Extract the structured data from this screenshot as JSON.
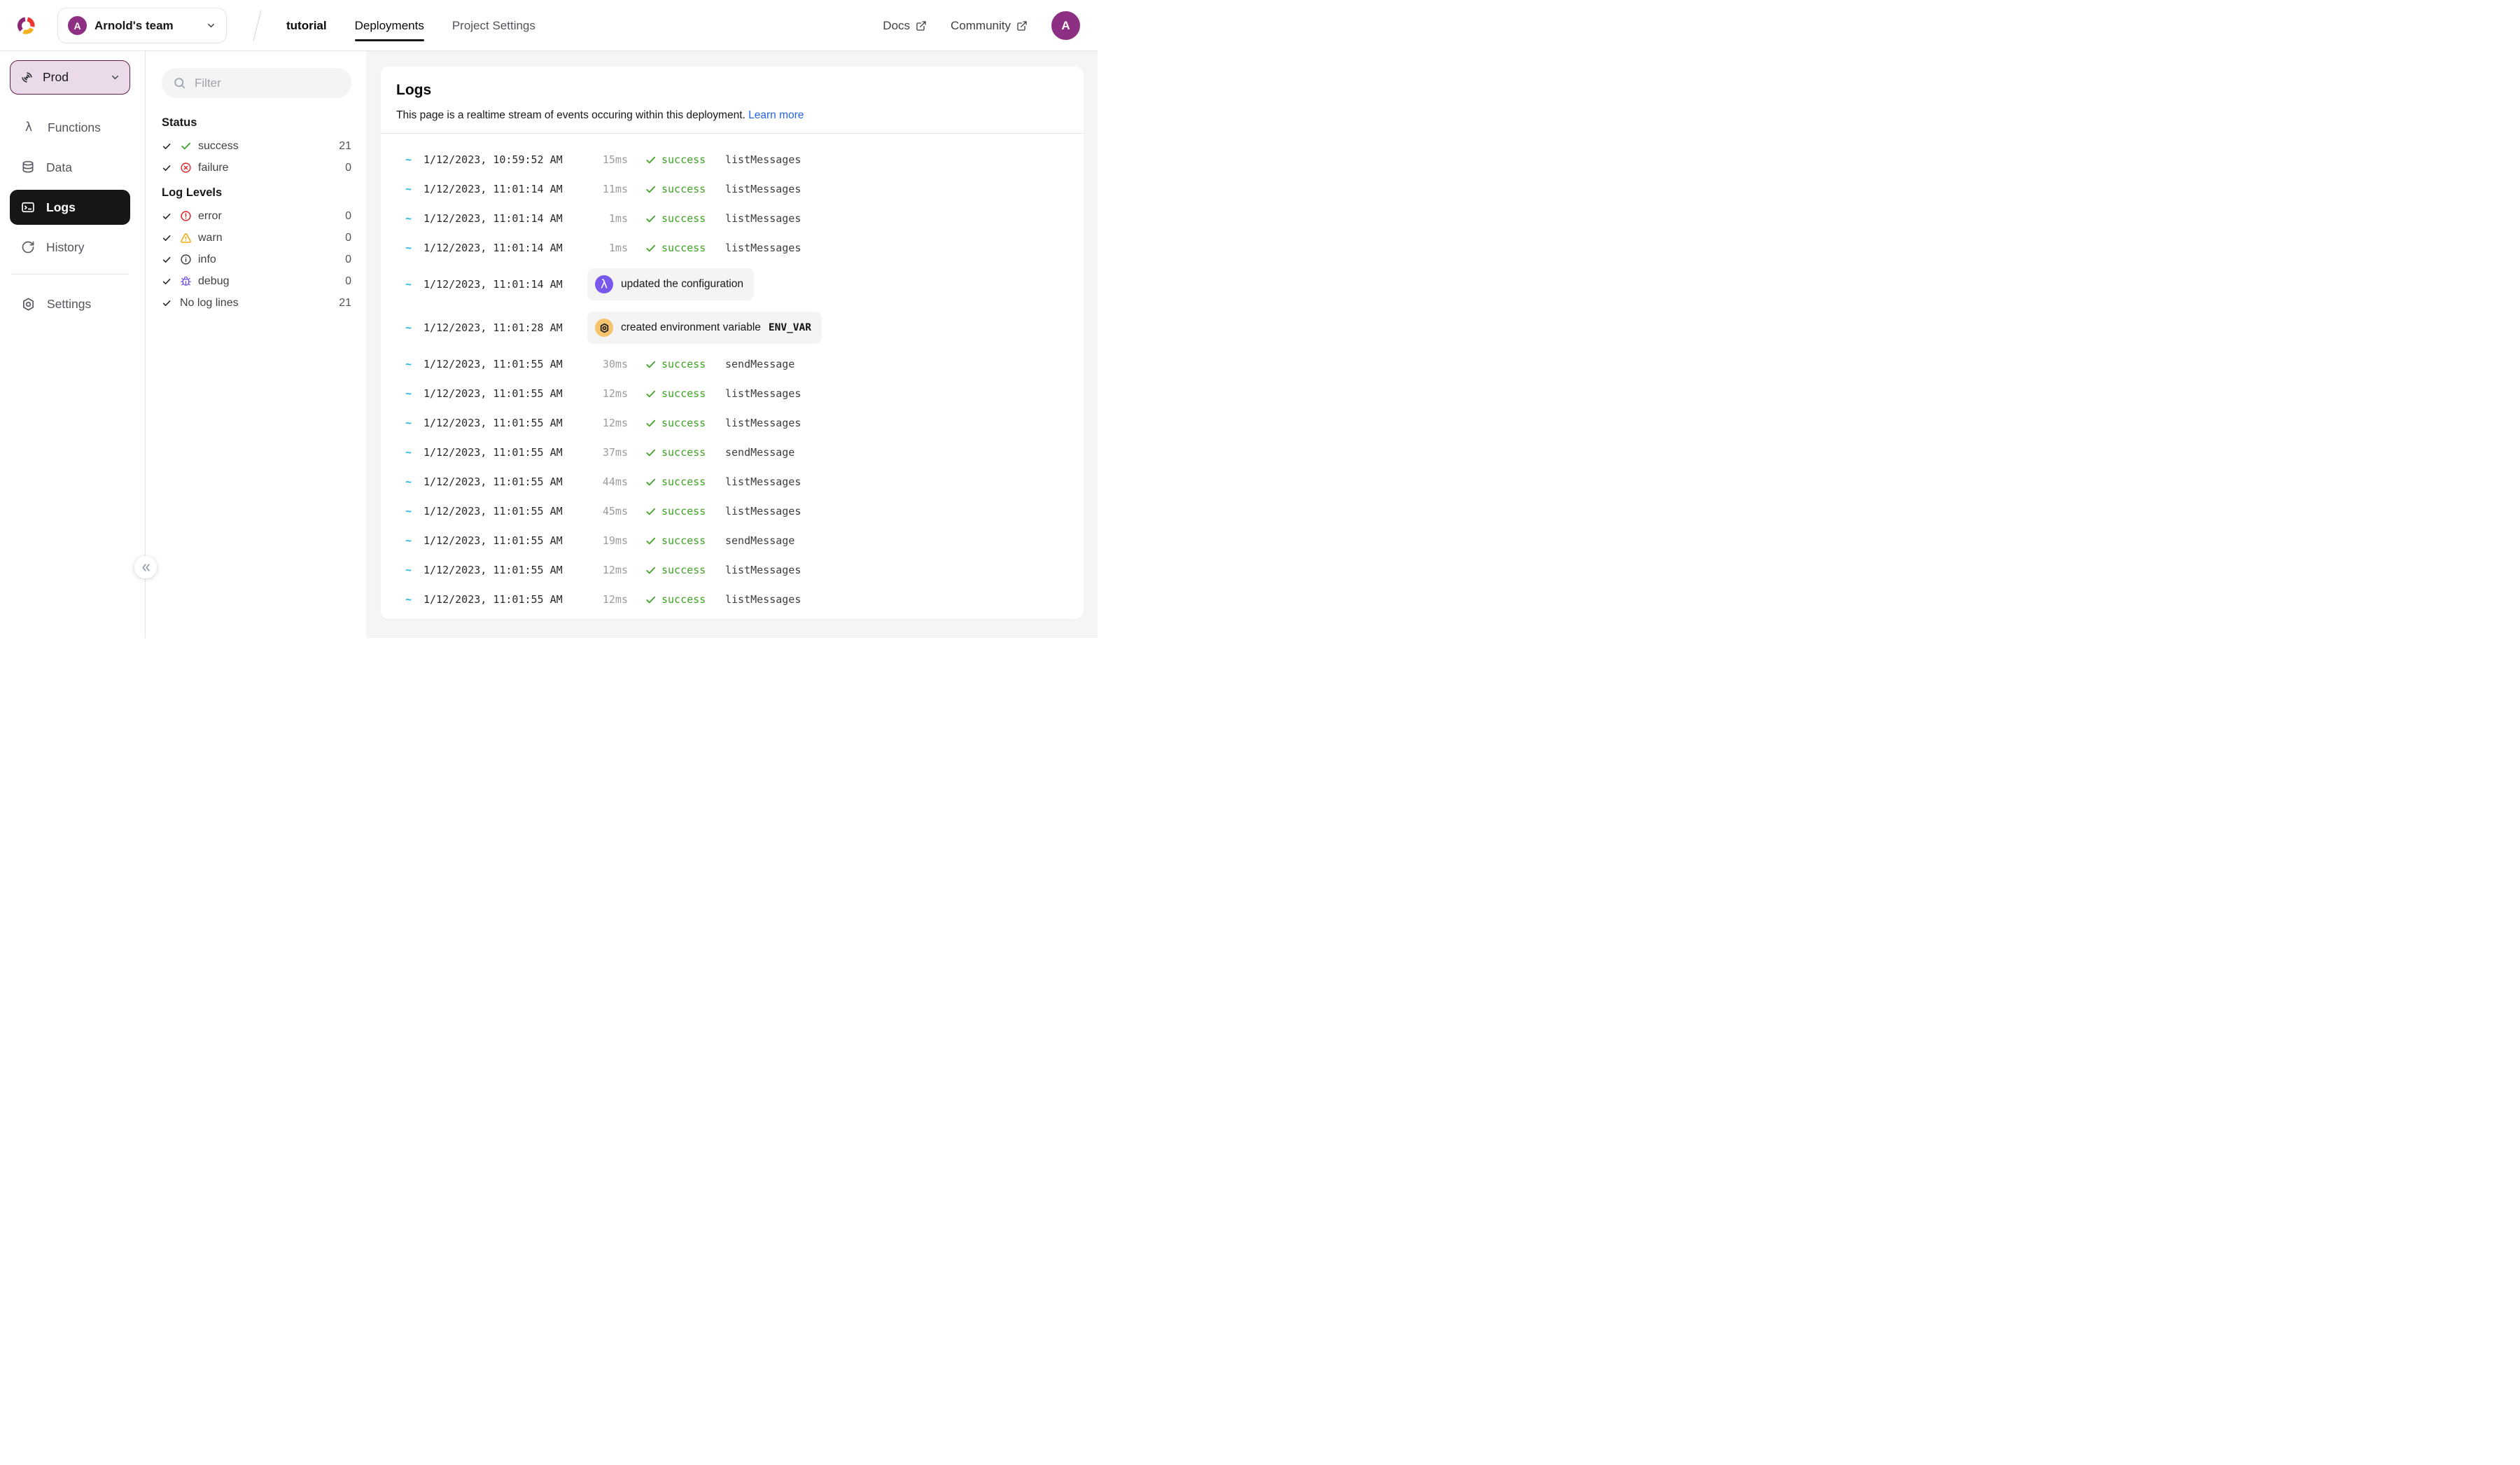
{
  "header": {
    "team_switcher": {
      "initial": "A",
      "name": "Arnold's team",
      "icon": "chevron-down-icon"
    },
    "nav": [
      {
        "label": "tutorial",
        "kind": "project",
        "active": false
      },
      {
        "label": "Deployments",
        "kind": "tab",
        "active": true
      },
      {
        "label": "Project Settings",
        "kind": "tab",
        "active": false
      }
    ],
    "links": [
      {
        "label": "Docs",
        "icon": "external-link-icon"
      },
      {
        "label": "Community",
        "icon": "external-link-icon"
      }
    ],
    "user_avatar_initial": "A"
  },
  "sidebar": {
    "deployment_switcher": {
      "label": "Prod",
      "icon": "signal-icon",
      "chevron": "chevron-down-icon"
    },
    "items": [
      {
        "label": "Functions",
        "icon": "lambda-icon",
        "active": false,
        "divider_after": false
      },
      {
        "label": "Data",
        "icon": "database-icon",
        "active": false,
        "divider_after": false
      },
      {
        "label": "Logs",
        "icon": "terminal-icon",
        "active": true,
        "divider_after": false
      },
      {
        "label": "History",
        "icon": "history-icon",
        "active": false,
        "divider_after": true
      },
      {
        "label": "Settings",
        "icon": "nut-icon",
        "active": false,
        "divider_after": false
      }
    ],
    "collapse_icon": "double-chevron-left-icon"
  },
  "filter_panel": {
    "search_placeholder": "Filter",
    "search_icon": "search-icon",
    "groups": [
      {
        "title": "Status",
        "rows": [
          {
            "label": "success",
            "icon": "check-green-icon",
            "tone": "green",
            "count": "21",
            "checked": true
          },
          {
            "label": "failure",
            "icon": "circle-x-icon",
            "tone": "red",
            "count": "0",
            "checked": true
          }
        ]
      },
      {
        "title": "Log Levels",
        "rows": [
          {
            "label": "error",
            "icon": "circle-exclaim-icon",
            "tone": "red",
            "count": "0",
            "checked": true
          },
          {
            "label": "warn",
            "icon": "triangle-warn-icon",
            "tone": "amber",
            "count": "0",
            "checked": true
          },
          {
            "label": "info",
            "icon": "circle-info-icon",
            "tone": "gray",
            "count": "0",
            "checked": true
          },
          {
            "label": "debug",
            "icon": "bug-icon",
            "tone": "violet",
            "count": "0",
            "checked": true
          },
          {
            "label": "No log lines",
            "icon": null,
            "tone": null,
            "count": "21",
            "checked": true
          }
        ]
      }
    ]
  },
  "logs": {
    "title": "Logs",
    "subtitle": "This page is a realtime stream of events occuring within this deployment.",
    "learn_more_label": "Learn more",
    "rows": [
      {
        "type": "call",
        "time": "1/12/2023, 10:59:52 AM",
        "duration": "15ms",
        "status": "success",
        "function": "listMessages"
      },
      {
        "type": "call",
        "time": "1/12/2023, 11:01:14 AM",
        "duration": "11ms",
        "status": "success",
        "function": "listMessages"
      },
      {
        "type": "call",
        "time": "1/12/2023, 11:01:14 AM",
        "duration": "1ms",
        "status": "success",
        "function": "listMessages"
      },
      {
        "type": "call",
        "time": "1/12/2023, 11:01:14 AM",
        "duration": "1ms",
        "status": "success",
        "function": "listMessages"
      },
      {
        "type": "event",
        "time": "1/12/2023, 11:01:14 AM",
        "icon": "lambda-badge-icon",
        "tone": "violet",
        "text": "updated the configuration",
        "code": null
      },
      {
        "type": "event",
        "time": "1/12/2023, 11:01:28 AM",
        "icon": "nut-badge-icon",
        "tone": "amber",
        "text": "created environment variable",
        "code": "ENV_VAR"
      },
      {
        "type": "call",
        "time": "1/12/2023, 11:01:55 AM",
        "duration": "30ms",
        "status": "success",
        "function": "sendMessage"
      },
      {
        "type": "call",
        "time": "1/12/2023, 11:01:55 AM",
        "duration": "12ms",
        "status": "success",
        "function": "listMessages"
      },
      {
        "type": "call",
        "time": "1/12/2023, 11:01:55 AM",
        "duration": "12ms",
        "status": "success",
        "function": "listMessages"
      },
      {
        "type": "call",
        "time": "1/12/2023, 11:01:55 AM",
        "duration": "37ms",
        "status": "success",
        "function": "sendMessage"
      },
      {
        "type": "call",
        "time": "1/12/2023, 11:01:55 AM",
        "duration": "44ms",
        "status": "success",
        "function": "listMessages"
      },
      {
        "type": "call",
        "time": "1/12/2023, 11:01:55 AM",
        "duration": "45ms",
        "status": "success",
        "function": "listMessages"
      },
      {
        "type": "call",
        "time": "1/12/2023, 11:01:55 AM",
        "duration": "19ms",
        "status": "success",
        "function": "sendMessage"
      },
      {
        "type": "call",
        "time": "1/12/2023, 11:01:55 AM",
        "duration": "12ms",
        "status": "success",
        "function": "listMessages"
      },
      {
        "type": "call",
        "time": "1/12/2023, 11:01:55 AM",
        "duration": "12ms",
        "status": "success",
        "function": "listMessages"
      }
    ]
  },
  "colors": {
    "brand_yellow": "#F3B01C",
    "brand_red": "#EE342F",
    "brand_purple": "#8D2676",
    "avatar_purple": "#8D2F83",
    "success_green": "#3EA224",
    "failure_red": "#DC2626",
    "warn_amber": "#F0A80A",
    "info_gray": "#3F3F46",
    "debug_violet": "#7857EB",
    "link_blue": "#2563EB",
    "tilde_cyan": "#29B5E8",
    "active_item_bg": "#161616",
    "prod_bg": "#EADAEA",
    "prod_border": "#621D4A",
    "main_bg": "#F5F5F6"
  }
}
